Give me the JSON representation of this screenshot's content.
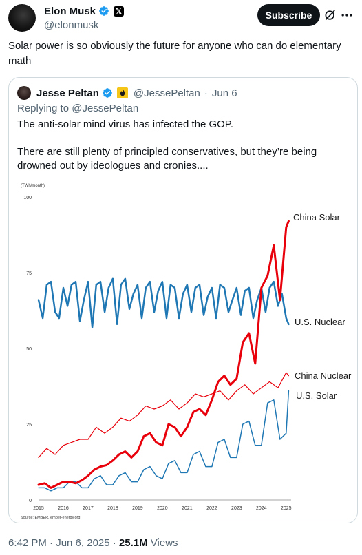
{
  "post": {
    "author_name": "Elon Musk",
    "author_handle": "@elonmusk",
    "x_badge": "𝕏",
    "subscribe_label": "Subscribe",
    "text": "Solar power is so obviously the future for anyone who can do elementary math",
    "timestamp": "6:42 PM · Jun 6, 2025 · ",
    "views_count": "25.1M",
    "views_label": " Views"
  },
  "quote": {
    "author_name": "Jesse Peltan",
    "author_handle": "@JessePeltan",
    "separator": "·",
    "date": "Jun 6",
    "replying_prefix": "Replying to ",
    "replying_to": "@JessePeltan",
    "paragraph1": "The anti-solar mind virus has infected the GOP.",
    "paragraph2": "There are still plenty of principled conservatives, but they’re being drowned out by ideologues and cronies...."
  },
  "colors": {
    "verified": "#1d9bf0",
    "china": "#e8000b",
    "us": "#1f77b4",
    "text_secondary": "#536471"
  },
  "icons": [
    "verified-icon",
    "x-logo-icon",
    "grok-icon",
    "more-icon",
    "flame-icon"
  ],
  "chart_data": {
    "type": "line",
    "unit_label": "(TWh/month)",
    "source": "Source: EMBER, ember-energy.org",
    "ylim": [
      0,
      100
    ],
    "yticks": [
      0,
      25,
      50,
      75,
      100
    ],
    "xlim": [
      2015,
      2025.2
    ],
    "xticks": [
      2015,
      2016,
      2017,
      2018,
      2019,
      2020,
      2021,
      2022,
      2023,
      2024,
      2025
    ],
    "grid": false,
    "legend": "inline-right",
    "series": [
      {
        "name": "China Solar",
        "color": "#e8000b",
        "width": 3,
        "x": [
          2015.0,
          2015.25,
          2015.5,
          2015.75,
          2016.0,
          2016.25,
          2016.5,
          2016.75,
          2017.0,
          2017.25,
          2017.5,
          2017.75,
          2018.0,
          2018.25,
          2018.5,
          2018.75,
          2019.0,
          2019.25,
          2019.5,
          2019.75,
          2020.0,
          2020.25,
          2020.5,
          2020.75,
          2021.0,
          2021.25,
          2021.5,
          2021.75,
          2022.0,
          2022.25,
          2022.5,
          2022.75,
          2023.0,
          2023.25,
          2023.5,
          2023.75,
          2024.0,
          2024.25,
          2024.5,
          2024.75,
          2025.0,
          2025.1
        ],
        "y": [
          5,
          5.5,
          4,
          5,
          6,
          6,
          5.5,
          6.5,
          8,
          10,
          11,
          11.5,
          13,
          15,
          16,
          14,
          16,
          21,
          22,
          19,
          18,
          25,
          24,
          21,
          24,
          29,
          30,
          28,
          33,
          39,
          41,
          38,
          40,
          52,
          55,
          45,
          70,
          74,
          84,
          66,
          90,
          92
        ]
      },
      {
        "name": "U.S. Nuclear",
        "color": "#1f77b4",
        "width": 2.5,
        "x": [
          2015.0,
          2015.17,
          2015.33,
          2015.5,
          2015.67,
          2015.83,
          2016.0,
          2016.17,
          2016.33,
          2016.5,
          2016.67,
          2016.83,
          2017.0,
          2017.17,
          2017.33,
          2017.5,
          2017.67,
          2017.83,
          2018.0,
          2018.17,
          2018.33,
          2018.5,
          2018.67,
          2018.83,
          2019.0,
          2019.17,
          2019.33,
          2019.5,
          2019.67,
          2019.83,
          2020.0,
          2020.17,
          2020.33,
          2020.5,
          2020.67,
          2020.83,
          2021.0,
          2021.17,
          2021.33,
          2021.5,
          2021.67,
          2021.83,
          2022.0,
          2022.17,
          2022.33,
          2022.5,
          2022.67,
          2022.83,
          2023.0,
          2023.17,
          2023.33,
          2023.5,
          2023.67,
          2023.83,
          2024.0,
          2024.17,
          2024.33,
          2024.5,
          2024.67,
          2024.83,
          2025.0,
          2025.1
        ],
        "y": [
          66,
          60,
          71,
          72,
          62,
          60,
          70,
          64,
          71,
          72,
          59,
          66,
          72,
          57,
          71,
          72,
          62,
          70,
          73,
          58,
          71,
          73,
          63,
          68,
          71,
          60,
          70,
          72,
          62,
          69,
          72,
          60,
          71,
          70,
          60,
          68,
          71,
          62,
          70,
          71,
          61,
          67,
          70,
          60,
          71,
          70,
          62,
          66,
          70,
          61,
          69,
          70,
          60,
          66,
          70,
          62,
          70,
          72,
          64,
          68,
          60,
          58
        ]
      },
      {
        "name": "China Nuclear",
        "color": "#e8000b",
        "width": 1.2,
        "x": [
          2015.0,
          2015.33,
          2015.67,
          2016.0,
          2016.33,
          2016.67,
          2017.0,
          2017.33,
          2017.67,
          2018.0,
          2018.33,
          2018.67,
          2019.0,
          2019.33,
          2019.67,
          2020.0,
          2020.33,
          2020.67,
          2021.0,
          2021.33,
          2021.67,
          2022.0,
          2022.33,
          2022.67,
          2023.0,
          2023.33,
          2023.67,
          2024.0,
          2024.33,
          2024.67,
          2025.0,
          2025.1
        ],
        "y": [
          14,
          17,
          15,
          18,
          19,
          20,
          20,
          24,
          22,
          24,
          27,
          26,
          28,
          31,
          30,
          31,
          33,
          30,
          32,
          35,
          34,
          35,
          36,
          33,
          36,
          38,
          35,
          37,
          39,
          37,
          42,
          41
        ]
      },
      {
        "name": "U.S. Solar",
        "color": "#1f77b4",
        "width": 1.5,
        "x": [
          2015.0,
          2015.25,
          2015.5,
          2015.75,
          2016.0,
          2016.25,
          2016.5,
          2016.75,
          2017.0,
          2017.25,
          2017.5,
          2017.75,
          2018.0,
          2018.25,
          2018.5,
          2018.75,
          2019.0,
          2019.25,
          2019.5,
          2019.75,
          2020.0,
          2020.25,
          2020.5,
          2020.75,
          2021.0,
          2021.25,
          2021.5,
          2021.75,
          2022.0,
          2022.25,
          2022.5,
          2022.75,
          2023.0,
          2023.25,
          2023.5,
          2023.75,
          2024.0,
          2024.25,
          2024.5,
          2024.75,
          2025.0,
          2025.1
        ],
        "y": [
          4,
          4,
          3,
          4,
          4,
          6,
          6,
          4,
          4,
          7,
          8,
          5,
          5,
          8,
          9,
          6,
          6,
          10,
          11,
          8,
          7,
          12,
          13,
          9,
          9,
          15,
          16,
          11,
          11,
          19,
          20,
          14,
          14,
          25,
          26,
          18,
          18,
          32,
          33,
          20,
          22,
          36
        ]
      }
    ]
  }
}
